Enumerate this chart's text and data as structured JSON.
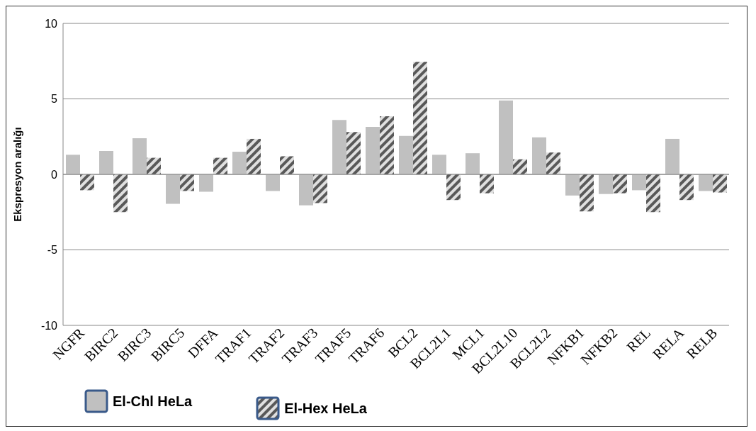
{
  "chart_data": {
    "type": "bar",
    "ylabel": "Ekspresyon aralığı",
    "categories": [
      "NGFR",
      "BIRC2",
      "BIRC3",
      "BIRC5",
      "DFFA",
      "TRAF1",
      "TRAF2",
      "TRAF3",
      "TRAF5",
      "TRAF6",
      "BCL2",
      "BCL2L1",
      "MCL1",
      "BCL2L10",
      "BCL2L2",
      "NFKB1",
      "NFKB2",
      "REL",
      "RELA",
      "RELB"
    ],
    "series": [
      {
        "name": "El-Chl HeLa",
        "color": "#c0c0c0",
        "values": [
          1.3,
          1.55,
          2.4,
          -1.95,
          -1.15,
          1.5,
          -1.1,
          -2.05,
          3.6,
          3.15,
          2.55,
          1.3,
          1.4,
          4.9,
          2.45,
          -1.4,
          -1.3,
          -1.05,
          2.35,
          -1.1
        ]
      },
      {
        "name": "El-Hex HeLa",
        "color": "#595959",
        "values": [
          -1.05,
          -2.5,
          1.1,
          -1.1,
          1.1,
          2.35,
          1.2,
          -1.9,
          2.8,
          3.85,
          7.45,
          -1.7,
          -1.25,
          1.0,
          1.45,
          -2.45,
          -1.25,
          -2.5,
          -1.7,
          -1.2
        ]
      }
    ],
    "ylim": [
      -10,
      10
    ],
    "yticks": [
      -10,
      -5,
      0,
      5,
      10
    ],
    "grid": "y",
    "legend": "bottom left"
  }
}
